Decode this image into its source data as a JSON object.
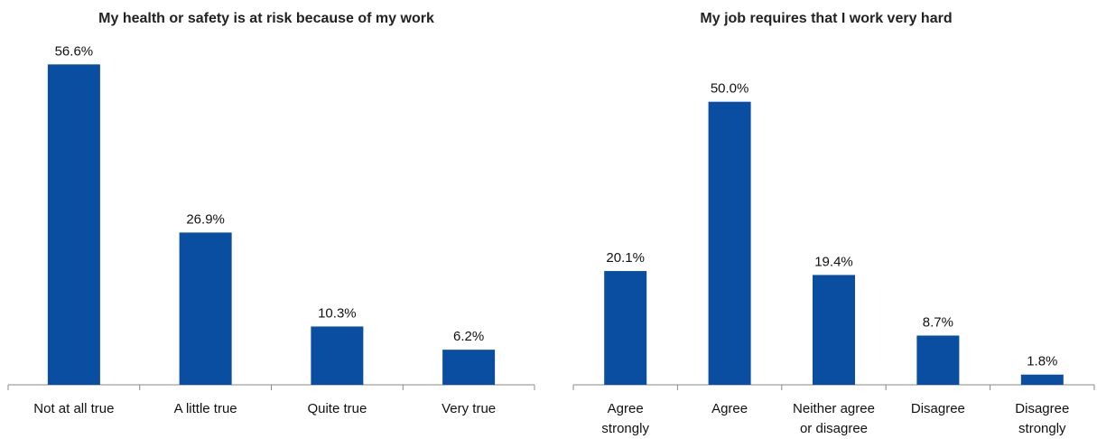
{
  "chart_data": [
    {
      "type": "bar",
      "title": "My health or safety is at risk because of my work",
      "categories": [
        "Not at all true",
        "A little true",
        "Quite true",
        "Very true"
      ],
      "values": [
        56.6,
        26.9,
        10.3,
        6.2
      ],
      "value_labels": [
        "56.6%",
        "26.9%",
        "10.3%",
        "6.2%"
      ],
      "ylim": [
        0,
        60
      ],
      "grid": false,
      "bar_color": "#0a4ea2"
    },
    {
      "type": "bar",
      "title": "My job requires that I work very hard",
      "categories": [
        [
          "Agree",
          "strongly"
        ],
        [
          "Agree"
        ],
        [
          "Neither agree",
          "or disagree"
        ],
        [
          "Disagree"
        ],
        [
          "Disagree",
          "strongly"
        ]
      ],
      "values": [
        20.1,
        50.0,
        19.4,
        8.7,
        1.8
      ],
      "value_labels": [
        "20.1%",
        "50.0%",
        "19.4%",
        "8.7%",
        "1.8%"
      ],
      "ylim": [
        0,
        60
      ],
      "grid": false,
      "bar_color": "#0a4ea2"
    }
  ]
}
